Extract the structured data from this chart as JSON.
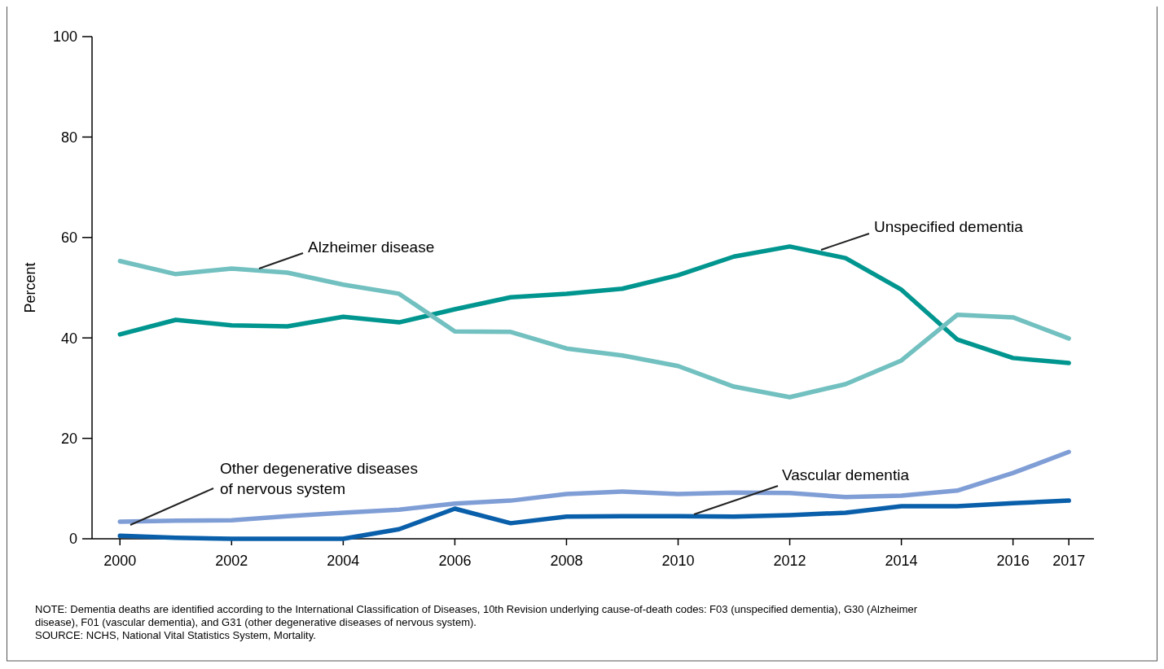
{
  "chart_data": {
    "type": "line",
    "ylabel": "Percent",
    "x": [
      2000,
      2001,
      2002,
      2003,
      2004,
      2005,
      2006,
      2007,
      2008,
      2009,
      2010,
      2011,
      2012,
      2013,
      2014,
      2015,
      2016,
      2017
    ],
    "xlim": [
      1999.5,
      2017.45
    ],
    "xticks": [
      2000,
      2002,
      2004,
      2006,
      2008,
      2010,
      2012,
      2014,
      2016,
      2017
    ],
    "ylim": [
      0,
      100
    ],
    "yticks": [
      0,
      20,
      40,
      60,
      80,
      100
    ],
    "grid": false,
    "marker": "none",
    "line_style": "solid",
    "series": [
      {
        "name": "Unspecified dementia",
        "color": "#00968f",
        "values": [
          40.7,
          43.6,
          42.5,
          42.3,
          44.2,
          43.1,
          45.7,
          48.1,
          48.8,
          49.8,
          52.5,
          56.2,
          58.2,
          55.9,
          49.6,
          39.7,
          36.0,
          35.0
        ]
      },
      {
        "name": "Alzheimer disease",
        "color": "#72c0c0",
        "values": [
          55.3,
          52.7,
          53.8,
          53.0,
          50.6,
          48.8,
          41.3,
          41.2,
          37.9,
          36.5,
          34.4,
          30.3,
          28.2,
          30.8,
          35.5,
          44.6,
          44.1,
          39.9
        ]
      },
      {
        "name": "Other degenerative diseases of nervous system",
        "color": "#809ed6",
        "values": [
          3.4,
          3.6,
          3.7,
          4.5,
          5.2,
          5.8,
          7.0,
          7.6,
          8.9,
          9.4,
          8.9,
          9.2,
          9.1,
          8.3,
          8.6,
          9.6,
          13.1,
          17.3
        ]
      },
      {
        "name": "Vascular dementia",
        "color": "#0a5faa",
        "values": [
          0.6,
          0.2,
          0,
          0,
          0,
          1.9,
          6.0,
          3.1,
          4.4,
          4.5,
          4.5,
          4.4,
          4.7,
          5.2,
          6.5,
          6.5,
          7.1,
          7.6
        ]
      }
    ],
    "annotations": [
      "NOTE: Dementia deaths are identified according to the International Classification of Diseases, 10th Revision underlying cause-of-death codes: F03 (unspecified dementia), G30 (Alzheimer disease), F01 (vascular dementia), and G31 (other degenerative diseases of nervous system).",
      "SOURCE: NCHS, National Vital Statistics System, Mortality."
    ]
  }
}
